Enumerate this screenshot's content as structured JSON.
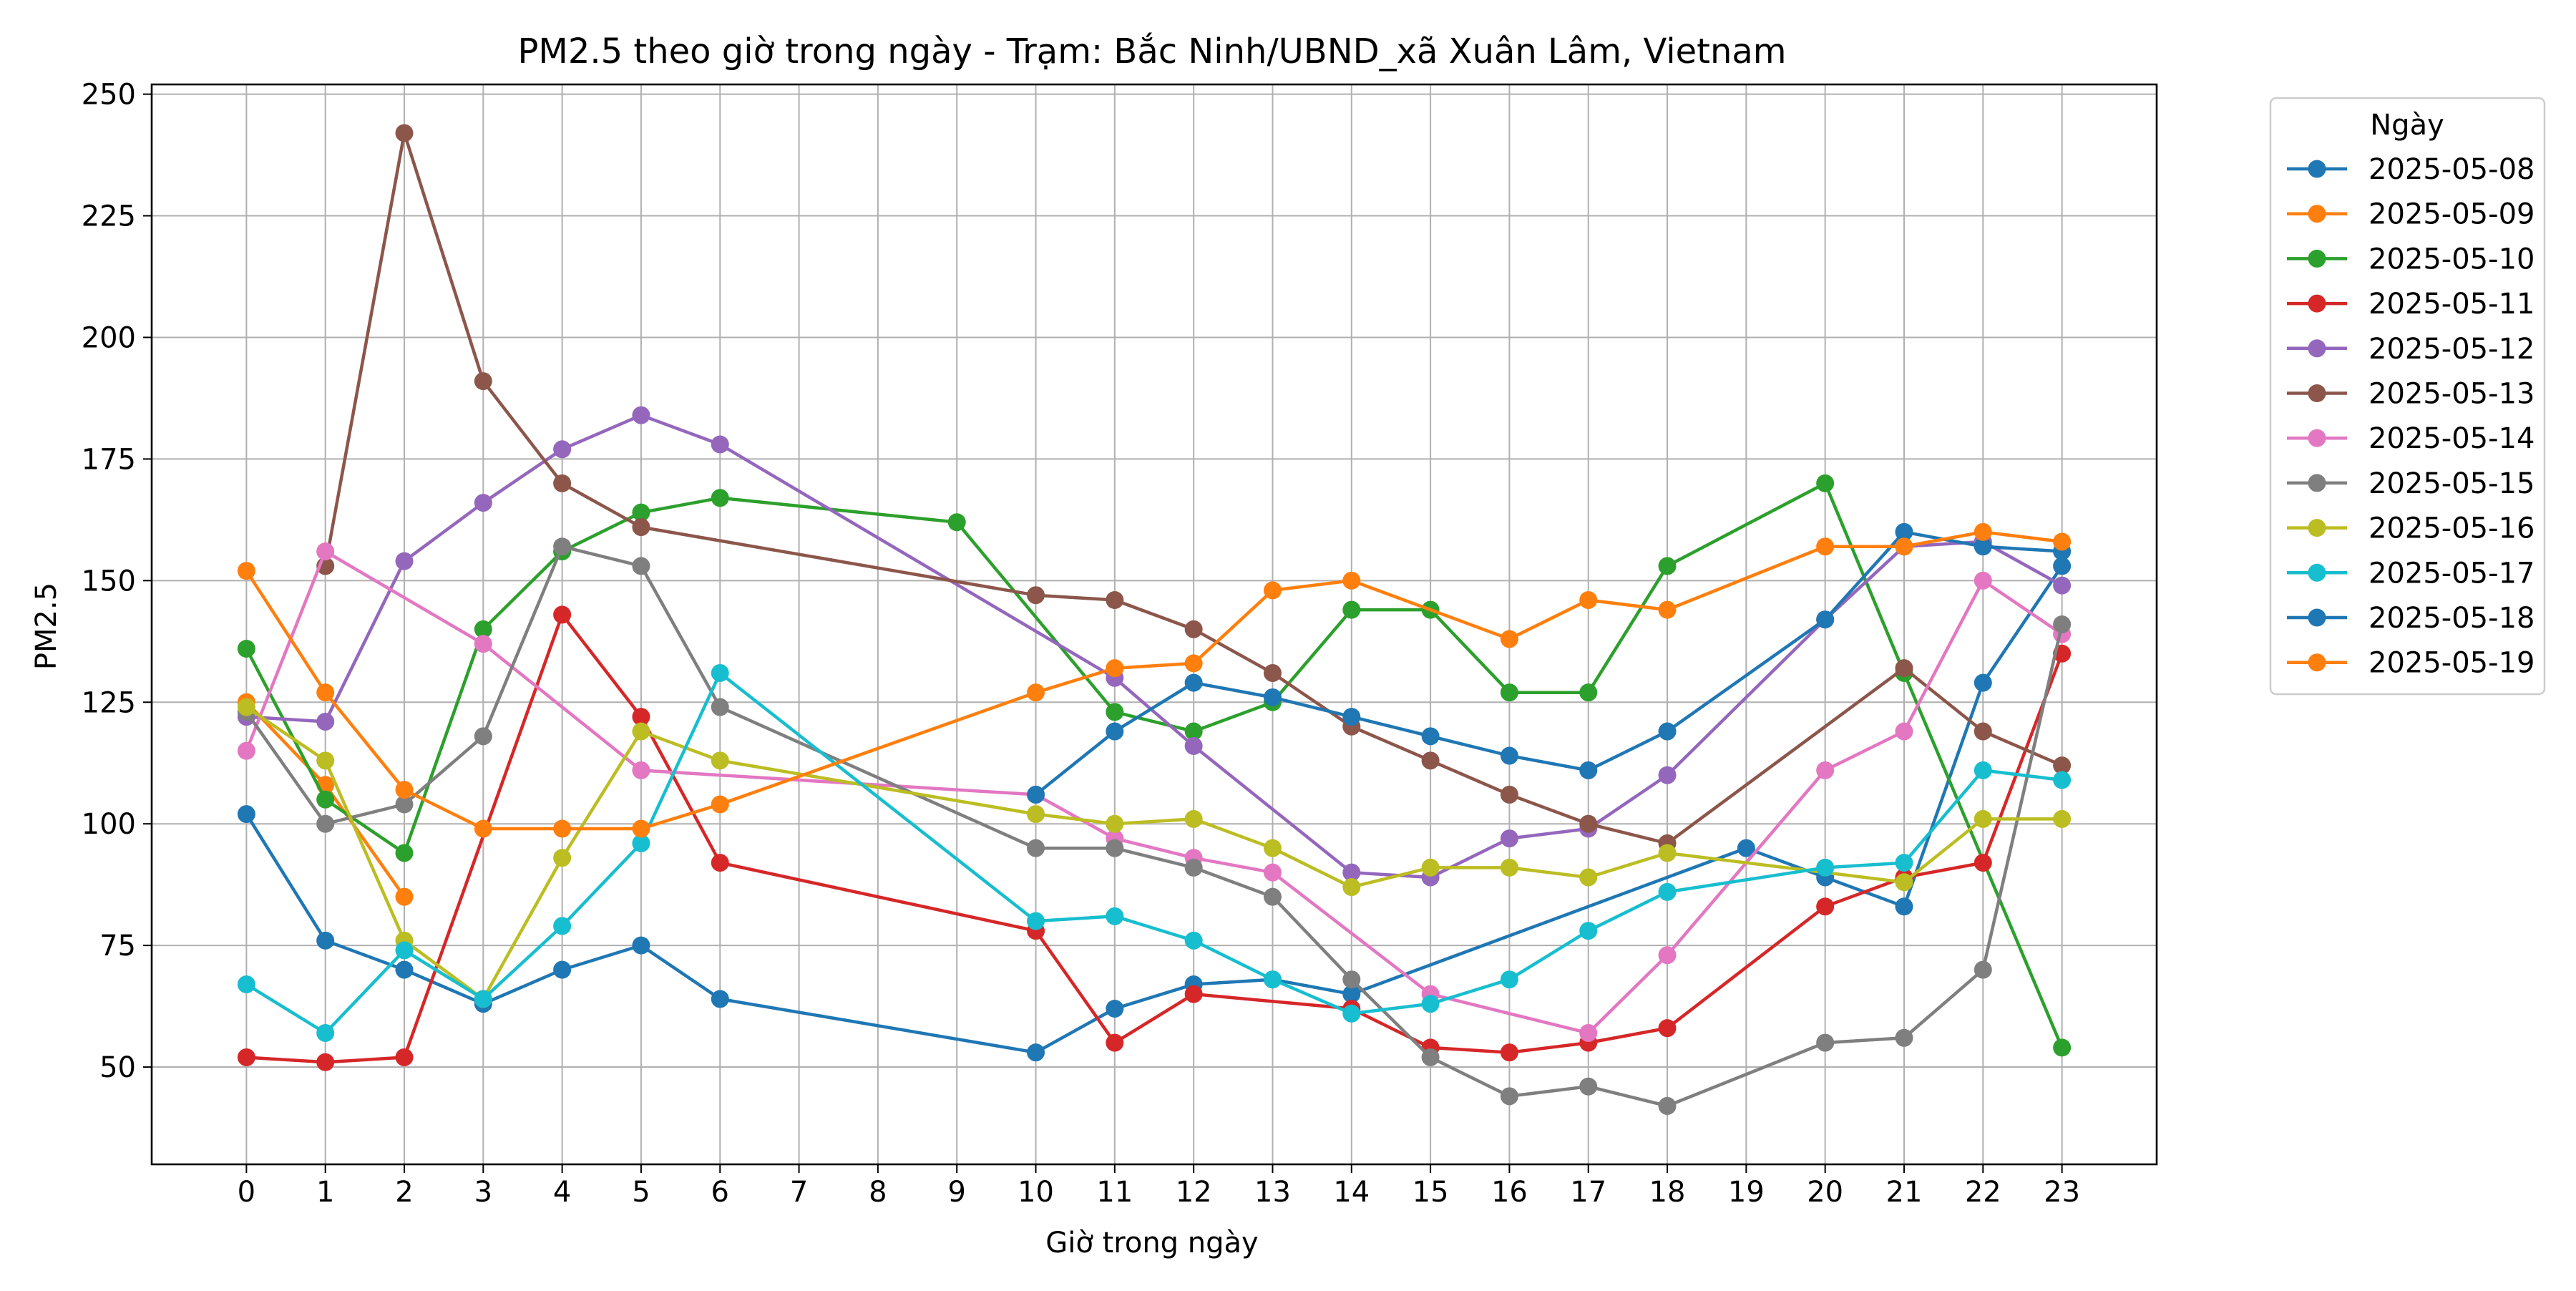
{
  "chart_data": {
    "type": "line",
    "title": "PM2.5 theo giờ trong ngày - Trạm: Bắc Ninh/UBND_xã Xuân Lâm, Vietnam",
    "xlabel": "Giờ trong ngày",
    "ylabel": "PM2.5",
    "xlim": [
      -1.2,
      24.2
    ],
    "ylim": [
      30,
      252
    ],
    "xticks": [
      0,
      1,
      2,
      3,
      4,
      5,
      6,
      7,
      8,
      9,
      10,
      11,
      12,
      13,
      14,
      15,
      16,
      17,
      18,
      19,
      20,
      21,
      22,
      23
    ],
    "yticks": [
      50,
      75,
      100,
      125,
      150,
      175,
      200,
      225,
      250
    ],
    "grid": true,
    "legend": {
      "title": "Ngày",
      "placement": "outside-top-right"
    },
    "series": [
      {
        "name": "2025-05-08",
        "color": "#1f77b4",
        "points": [
          [
            0,
            102
          ],
          [
            1,
            76
          ],
          [
            2,
            70
          ],
          [
            3,
            63
          ],
          [
            4,
            70
          ],
          [
            5,
            75
          ],
          [
            6,
            64
          ],
          [
            10,
            53
          ],
          [
            11,
            62
          ],
          [
            12,
            67
          ],
          [
            13,
            68
          ],
          [
            14,
            65
          ],
          [
            19,
            95
          ],
          [
            20,
            89
          ],
          [
            21,
            83
          ],
          [
            22,
            129
          ],
          [
            23,
            153
          ]
        ]
      },
      {
        "name": "2025-05-09",
        "color": "#ff7f0e",
        "points": [
          [
            0,
            125
          ],
          [
            1,
            108
          ],
          [
            2,
            85
          ]
        ]
      },
      {
        "name": "2025-05-10",
        "color": "#2ca02c",
        "points": [
          [
            0,
            136
          ],
          [
            1,
            105
          ],
          [
            2,
            94
          ],
          [
            3,
            140
          ],
          [
            4,
            156
          ],
          [
            5,
            164
          ],
          [
            6,
            167
          ],
          [
            9,
            162
          ],
          [
            11,
            123
          ],
          [
            12,
            119
          ],
          [
            13,
            125
          ],
          [
            14,
            144
          ],
          [
            15,
            144
          ],
          [
            16,
            127
          ],
          [
            17,
            127
          ],
          [
            18,
            153
          ],
          [
            20,
            170
          ],
          [
            21,
            131
          ],
          [
            23,
            54
          ]
        ]
      },
      {
        "name": "2025-05-11",
        "color": "#d62728",
        "points": [
          [
            0,
            52
          ],
          [
            1,
            51
          ],
          [
            2,
            52
          ],
          [
            4,
            143
          ],
          [
            5,
            122
          ],
          [
            6,
            92
          ],
          [
            10,
            78
          ],
          [
            11,
            55
          ],
          [
            12,
            65
          ],
          [
            14,
            62
          ],
          [
            15,
            54
          ],
          [
            16,
            53
          ],
          [
            17,
            55
          ],
          [
            18,
            58
          ],
          [
            20,
            83
          ],
          [
            21,
            89
          ],
          [
            22,
            92
          ],
          [
            23,
            135
          ]
        ]
      },
      {
        "name": "2025-05-12",
        "color": "#9467bd",
        "points": [
          [
            0,
            122
          ],
          [
            1,
            121
          ],
          [
            2,
            154
          ],
          [
            3,
            166
          ],
          [
            4,
            177
          ],
          [
            5,
            184
          ],
          [
            6,
            178
          ],
          [
            11,
            130
          ],
          [
            12,
            116
          ],
          [
            14,
            90
          ],
          [
            15,
            89
          ],
          [
            16,
            97
          ],
          [
            17,
            99
          ],
          [
            18,
            110
          ],
          [
            20,
            142
          ],
          [
            21,
            157
          ],
          [
            22,
            158
          ],
          [
            23,
            149
          ]
        ]
      },
      {
        "name": "2025-05-13",
        "color": "#8c564b",
        "points": [
          [
            1,
            153
          ],
          [
            2,
            242
          ],
          [
            3,
            191
          ],
          [
            4,
            170
          ],
          [
            5,
            161
          ],
          [
            10,
            147
          ],
          [
            11,
            146
          ],
          [
            12,
            140
          ],
          [
            13,
            131
          ],
          [
            14,
            120
          ],
          [
            15,
            113
          ],
          [
            16,
            106
          ],
          [
            17,
            100
          ],
          [
            18,
            96
          ],
          [
            21,
            132
          ],
          [
            22,
            119
          ],
          [
            23,
            112
          ]
        ]
      },
      {
        "name": "2025-05-14",
        "color": "#e377c2",
        "points": [
          [
            0,
            115
          ],
          [
            1,
            156
          ],
          [
            3,
            137
          ],
          [
            5,
            111
          ],
          [
            10,
            106
          ],
          [
            11,
            97
          ],
          [
            12,
            93
          ],
          [
            13,
            90
          ],
          [
            15,
            65
          ],
          [
            17,
            57
          ],
          [
            18,
            73
          ],
          [
            20,
            111
          ],
          [
            21,
            119
          ],
          [
            22,
            150
          ],
          [
            23,
            139
          ]
        ]
      },
      {
        "name": "2025-05-15",
        "color": "#7f7f7f",
        "points": [
          [
            0,
            123
          ],
          [
            1,
            100
          ],
          [
            2,
            104
          ],
          [
            3,
            118
          ],
          [
            4,
            157
          ],
          [
            5,
            153
          ],
          [
            6,
            124
          ],
          [
            10,
            95
          ],
          [
            11,
            95
          ],
          [
            12,
            91
          ],
          [
            13,
            85
          ],
          [
            14,
            68
          ],
          [
            15,
            52
          ],
          [
            16,
            44
          ],
          [
            17,
            46
          ],
          [
            18,
            42
          ],
          [
            20,
            55
          ],
          [
            21,
            56
          ],
          [
            22,
            70
          ],
          [
            23,
            141
          ]
        ]
      },
      {
        "name": "2025-05-16",
        "color": "#bcbd22",
        "points": [
          [
            0,
            124
          ],
          [
            1,
            113
          ],
          [
            2,
            76
          ],
          [
            3,
            64
          ],
          [
            4,
            93
          ],
          [
            5,
            119
          ],
          [
            6,
            113
          ],
          [
            10,
            102
          ],
          [
            11,
            100
          ],
          [
            12,
            101
          ],
          [
            13,
            95
          ],
          [
            14,
            87
          ],
          [
            15,
            91
          ],
          [
            16,
            91
          ],
          [
            17,
            89
          ],
          [
            18,
            94
          ],
          [
            21,
            88
          ],
          [
            22,
            101
          ],
          [
            23,
            101
          ]
        ]
      },
      {
        "name": "2025-05-17",
        "color": "#17becf",
        "points": [
          [
            0,
            67
          ],
          [
            1,
            57
          ],
          [
            2,
            74
          ],
          [
            3,
            64
          ],
          [
            4,
            79
          ],
          [
            5,
            96
          ],
          [
            6,
            131
          ],
          [
            10,
            80
          ],
          [
            11,
            81
          ],
          [
            12,
            76
          ],
          [
            13,
            68
          ],
          [
            14,
            61
          ],
          [
            15,
            63
          ],
          [
            16,
            68
          ],
          [
            17,
            78
          ],
          [
            18,
            86
          ],
          [
            20,
            91
          ],
          [
            21,
            92
          ],
          [
            22,
            111
          ],
          [
            23,
            109
          ]
        ]
      },
      {
        "name": "2025-05-18",
        "color": "#1f77b4",
        "points": [
          [
            10,
            106
          ],
          [
            11,
            119
          ],
          [
            12,
            129
          ],
          [
            13,
            126
          ],
          [
            14,
            122
          ],
          [
            15,
            118
          ],
          [
            16,
            114
          ],
          [
            17,
            111
          ],
          [
            18,
            119
          ],
          [
            20,
            142
          ],
          [
            21,
            160
          ],
          [
            22,
            157
          ],
          [
            23,
            156
          ]
        ]
      },
      {
        "name": "2025-05-19",
        "color": "#ff7f0e",
        "points": [
          [
            0,
            152
          ],
          [
            1,
            127
          ],
          [
            2,
            107
          ],
          [
            3,
            99
          ],
          [
            4,
            99
          ],
          [
            5,
            99
          ],
          [
            6,
            104
          ],
          [
            10,
            127
          ],
          [
            11,
            132
          ],
          [
            12,
            133
          ],
          [
            13,
            148
          ],
          [
            14,
            150
          ],
          [
            16,
            138
          ],
          [
            17,
            146
          ],
          [
            18,
            144
          ],
          [
            20,
            157
          ],
          [
            21,
            157
          ],
          [
            22,
            160
          ],
          [
            23,
            158
          ]
        ]
      }
    ]
  }
}
